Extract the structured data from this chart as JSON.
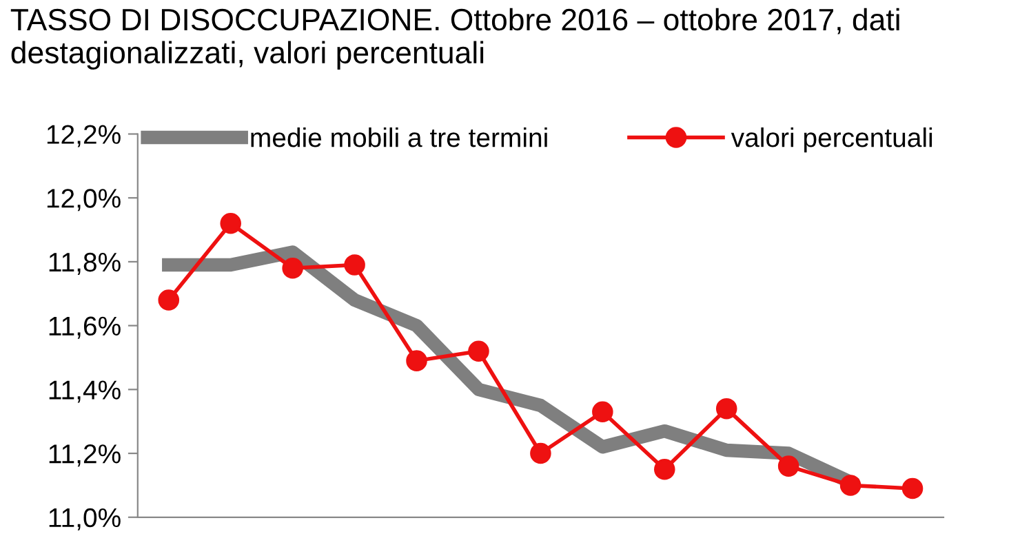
{
  "chart_data": {
    "type": "line",
    "title": "TASSO DI DISOCCUPAZIONE. Ottobre 2016 – ottobre 2017, dati destagionalizzati, valori percentuali",
    "categories": [
      null,
      null,
      null,
      null,
      null,
      null,
      null,
      null,
      null,
      null,
      null,
      null,
      null
    ],
    "series": [
      {
        "name": "medie mobili a tre termini",
        "color": "#7f7f7f",
        "marker": "none",
        "values": [
          11.79,
          11.79,
          11.83,
          11.68,
          11.6,
          11.4,
          11.35,
          11.22,
          11.27,
          11.21,
          11.2,
          11.11,
          null
        ]
      },
      {
        "name": "valori percentuali",
        "color": "#ee1111",
        "marker": "circle",
        "values": [
          11.68,
          11.92,
          11.78,
          11.79,
          11.49,
          11.52,
          11.2,
          11.33,
          11.15,
          11.34,
          11.16,
          11.1,
          11.09
        ]
      }
    ],
    "ylim": [
      11.0,
      12.2
    ],
    "yticks": [
      {
        "value": 11.0,
        "label": "11,0%"
      },
      {
        "value": 11.2,
        "label": "11,2%"
      },
      {
        "value": 11.4,
        "label": "11,4%"
      },
      {
        "value": 11.6,
        "label": "11,6%"
      },
      {
        "value": 11.8,
        "label": "11,8%"
      },
      {
        "value": 12.0,
        "label": "12,0%"
      },
      {
        "value": 12.2,
        "label": "12,2%"
      }
    ],
    "grid": false,
    "legend": "top",
    "line_style": "solid",
    "tick_labels": "y"
  }
}
